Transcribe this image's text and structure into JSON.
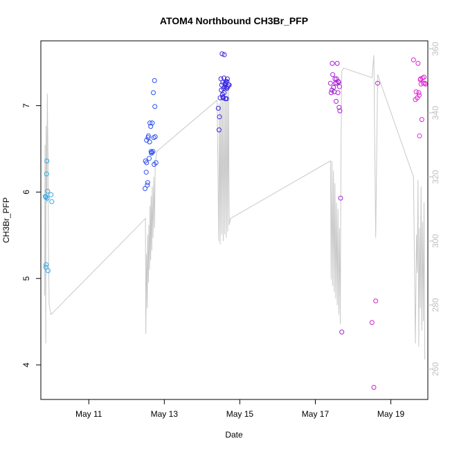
{
  "chart_data": {
    "type": "scatter",
    "title": "ATOM4 Northbound CH3Br_PFP",
    "xlabel": "Date",
    "ylabel": "CH3Br_PFP",
    "x_range": [
      9.73,
      19.98
    ],
    "ylim_left": [
      3.6,
      7.75
    ],
    "ylim_right": [
      250.5,
      362.5
    ],
    "x_ticks": [
      {
        "value": 11,
        "label": "May 11"
      },
      {
        "value": 13,
        "label": "May 13"
      },
      {
        "value": 15,
        "label": "May 15"
      },
      {
        "value": 17,
        "label": "May 17"
      },
      {
        "value": 19,
        "label": "May 19"
      }
    ],
    "y_ticks_left": [
      {
        "value": 4,
        "label": "4"
      },
      {
        "value": 5,
        "label": "5"
      },
      {
        "value": 6,
        "label": "6"
      },
      {
        "value": 7,
        "label": "7"
      }
    ],
    "y_ticks_right": [
      {
        "value": 260,
        "label": "260"
      },
      {
        "value": 280,
        "label": "280"
      },
      {
        "value": 300,
        "label": "300"
      },
      {
        "value": 320,
        "label": "320"
      },
      {
        "value": 340,
        "label": "340"
      },
      {
        "value": 360,
        "label": "360"
      }
    ],
    "series": [
      {
        "axis": "left",
        "color": "#2aa6e8",
        "x": [
          9.85,
          9.86,
          9.87,
          9.88,
          9.89,
          9.9,
          9.91,
          9.92,
          10.0,
          10.02,
          9.86
        ],
        "y": [
          5.95,
          5.13,
          5.16,
          6.21,
          6.36,
          5.93,
          6.01,
          5.09,
          5.97,
          5.89,
          5.94
        ]
      },
      {
        "axis": "left",
        "color": "#2a4ef0",
        "x": [
          12.49,
          12.5,
          12.52,
          12.53,
          12.55,
          12.56,
          12.58,
          12.6,
          12.61,
          12.62,
          12.64,
          12.65,
          12.67,
          12.68,
          12.7,
          12.71,
          12.72,
          12.73,
          12.74,
          12.75,
          12.76,
          12.78,
          12.53,
          12.57,
          12.66
        ],
        "y": [
          6.04,
          6.36,
          6.23,
          6.6,
          6.08,
          6.11,
          6.65,
          6.39,
          6.58,
          6.8,
          6.76,
          6.47,
          6.46,
          6.8,
          6.47,
          7.15,
          6.63,
          6.32,
          7.29,
          6.99,
          6.64,
          6.34,
          6.34,
          6.63,
          6.45
        ]
      },
      {
        "axis": "left",
        "color": "#3422e0",
        "x": [
          14.43,
          14.45,
          14.46,
          14.48,
          14.5,
          14.51,
          14.52,
          14.53,
          14.54,
          14.55,
          14.56,
          14.57,
          14.58,
          14.59,
          14.6,
          14.61,
          14.62,
          14.63,
          14.64,
          14.65,
          14.66,
          14.67,
          14.68,
          14.7,
          14.72,
          14.55,
          14.58,
          14.62,
          14.66
        ],
        "y": [
          6.97,
          6.72,
          6.87,
          7.09,
          7.31,
          7.18,
          7.24,
          7.6,
          7.13,
          7.1,
          7.09,
          7.2,
          7.32,
          7.59,
          7.22,
          7.25,
          7.26,
          7.28,
          7.21,
          7.08,
          7.28,
          7.31,
          7.22,
          7.24,
          7.24,
          7.27,
          7.15,
          7.08,
          7.2
        ]
      },
      {
        "axis": "left",
        "color": "#a81fd6",
        "x": [
          17.4,
          17.42,
          17.44,
          17.45,
          17.46,
          17.48,
          17.5,
          17.52,
          17.53,
          17.55,
          17.57,
          17.58,
          17.6,
          17.62,
          17.63,
          17.65,
          17.67,
          17.7,
          17.56,
          17.61,
          17.64
        ],
        "y": [
          7.26,
          7.15,
          7.18,
          7.49,
          7.36,
          7.21,
          7.16,
          7.31,
          7.26,
          7.05,
          7.26,
          7.49,
          7.15,
          7.27,
          6.98,
          6.94,
          5.93,
          4.38,
          7.31,
          7.28,
          7.22
        ]
      },
      {
        "axis": "left",
        "color": "#c81ec8",
        "x": [
          18.5,
          18.55,
          18.6,
          18.65
        ],
        "y": [
          4.49,
          3.74,
          4.74,
          7.26
        ]
      },
      {
        "axis": "left",
        "color": "#e022d8",
        "x": [
          19.6,
          19.65,
          19.67,
          19.7,
          19.72,
          19.74,
          19.76,
          19.78,
          19.8,
          19.82,
          19.84,
          19.86,
          19.88,
          19.9,
          19.92,
          19.75,
          19.79
        ],
        "y": [
          7.53,
          7.07,
          7.16,
          7.09,
          7.49,
          7.15,
          6.65,
          7.3,
          7.25,
          6.84,
          7.32,
          7.26,
          7.33,
          7.26,
          7.25,
          7.12,
          7.31
        ]
      },
      {
        "axis": "right",
        "color": "#c8c8c8",
        "type": "line",
        "x": [
          9.83,
          9.84,
          9.86,
          9.87,
          9.89,
          9.9,
          9.92,
          9.93,
          9.95,
          10.0,
          12.5,
          12.51,
          12.52,
          12.53,
          12.55,
          12.56,
          12.58,
          12.59,
          12.61,
          12.62,
          12.64,
          12.65,
          12.67,
          12.68,
          12.7,
          12.72,
          12.74,
          12.76,
          12.8,
          14.4,
          14.44,
          14.46,
          14.48,
          14.5,
          14.52,
          14.54,
          14.56,
          14.58,
          14.6,
          14.62,
          14.64,
          14.66,
          14.68,
          14.7,
          14.72,
          14.75,
          17.4,
          17.42,
          17.44,
          17.46,
          17.48,
          17.5,
          17.52,
          17.54,
          17.56,
          17.58,
          17.6,
          17.62,
          17.64,
          17.66,
          17.68,
          17.7,
          17.75,
          18.5,
          18.55,
          18.6,
          18.65,
          19.6,
          19.65,
          19.68,
          19.7,
          19.72,
          19.74,
          19.76,
          19.78,
          19.8,
          19.82,
          19.84,
          19.86,
          19.88,
          19.9
        ],
        "y": [
          283,
          330,
          268,
          336,
          312,
          346,
          326,
          300,
          280,
          277,
          307,
          271,
          282,
          296,
          279,
          302,
          287,
          305,
          291,
          311,
          294,
          314,
          297,
          317,
          301,
          320,
          304,
          324,
          328,
          344,
          300,
          343,
          299,
          346,
          302,
          345,
          300,
          348,
          302,
          346,
          301,
          348,
          303,
          349,
          305,
          307,
          325,
          288,
          325,
          286,
          322,
          284,
          318,
          282,
          312,
          280,
          310,
          277,
          304,
          274,
          330,
          353,
          354,
          351,
          358,
          301,
          352,
          320,
          268,
          302,
          290,
          319,
          267,
          304,
          279,
          317,
          272,
          306,
          275,
          312,
          263
        ]
      }
    ]
  }
}
